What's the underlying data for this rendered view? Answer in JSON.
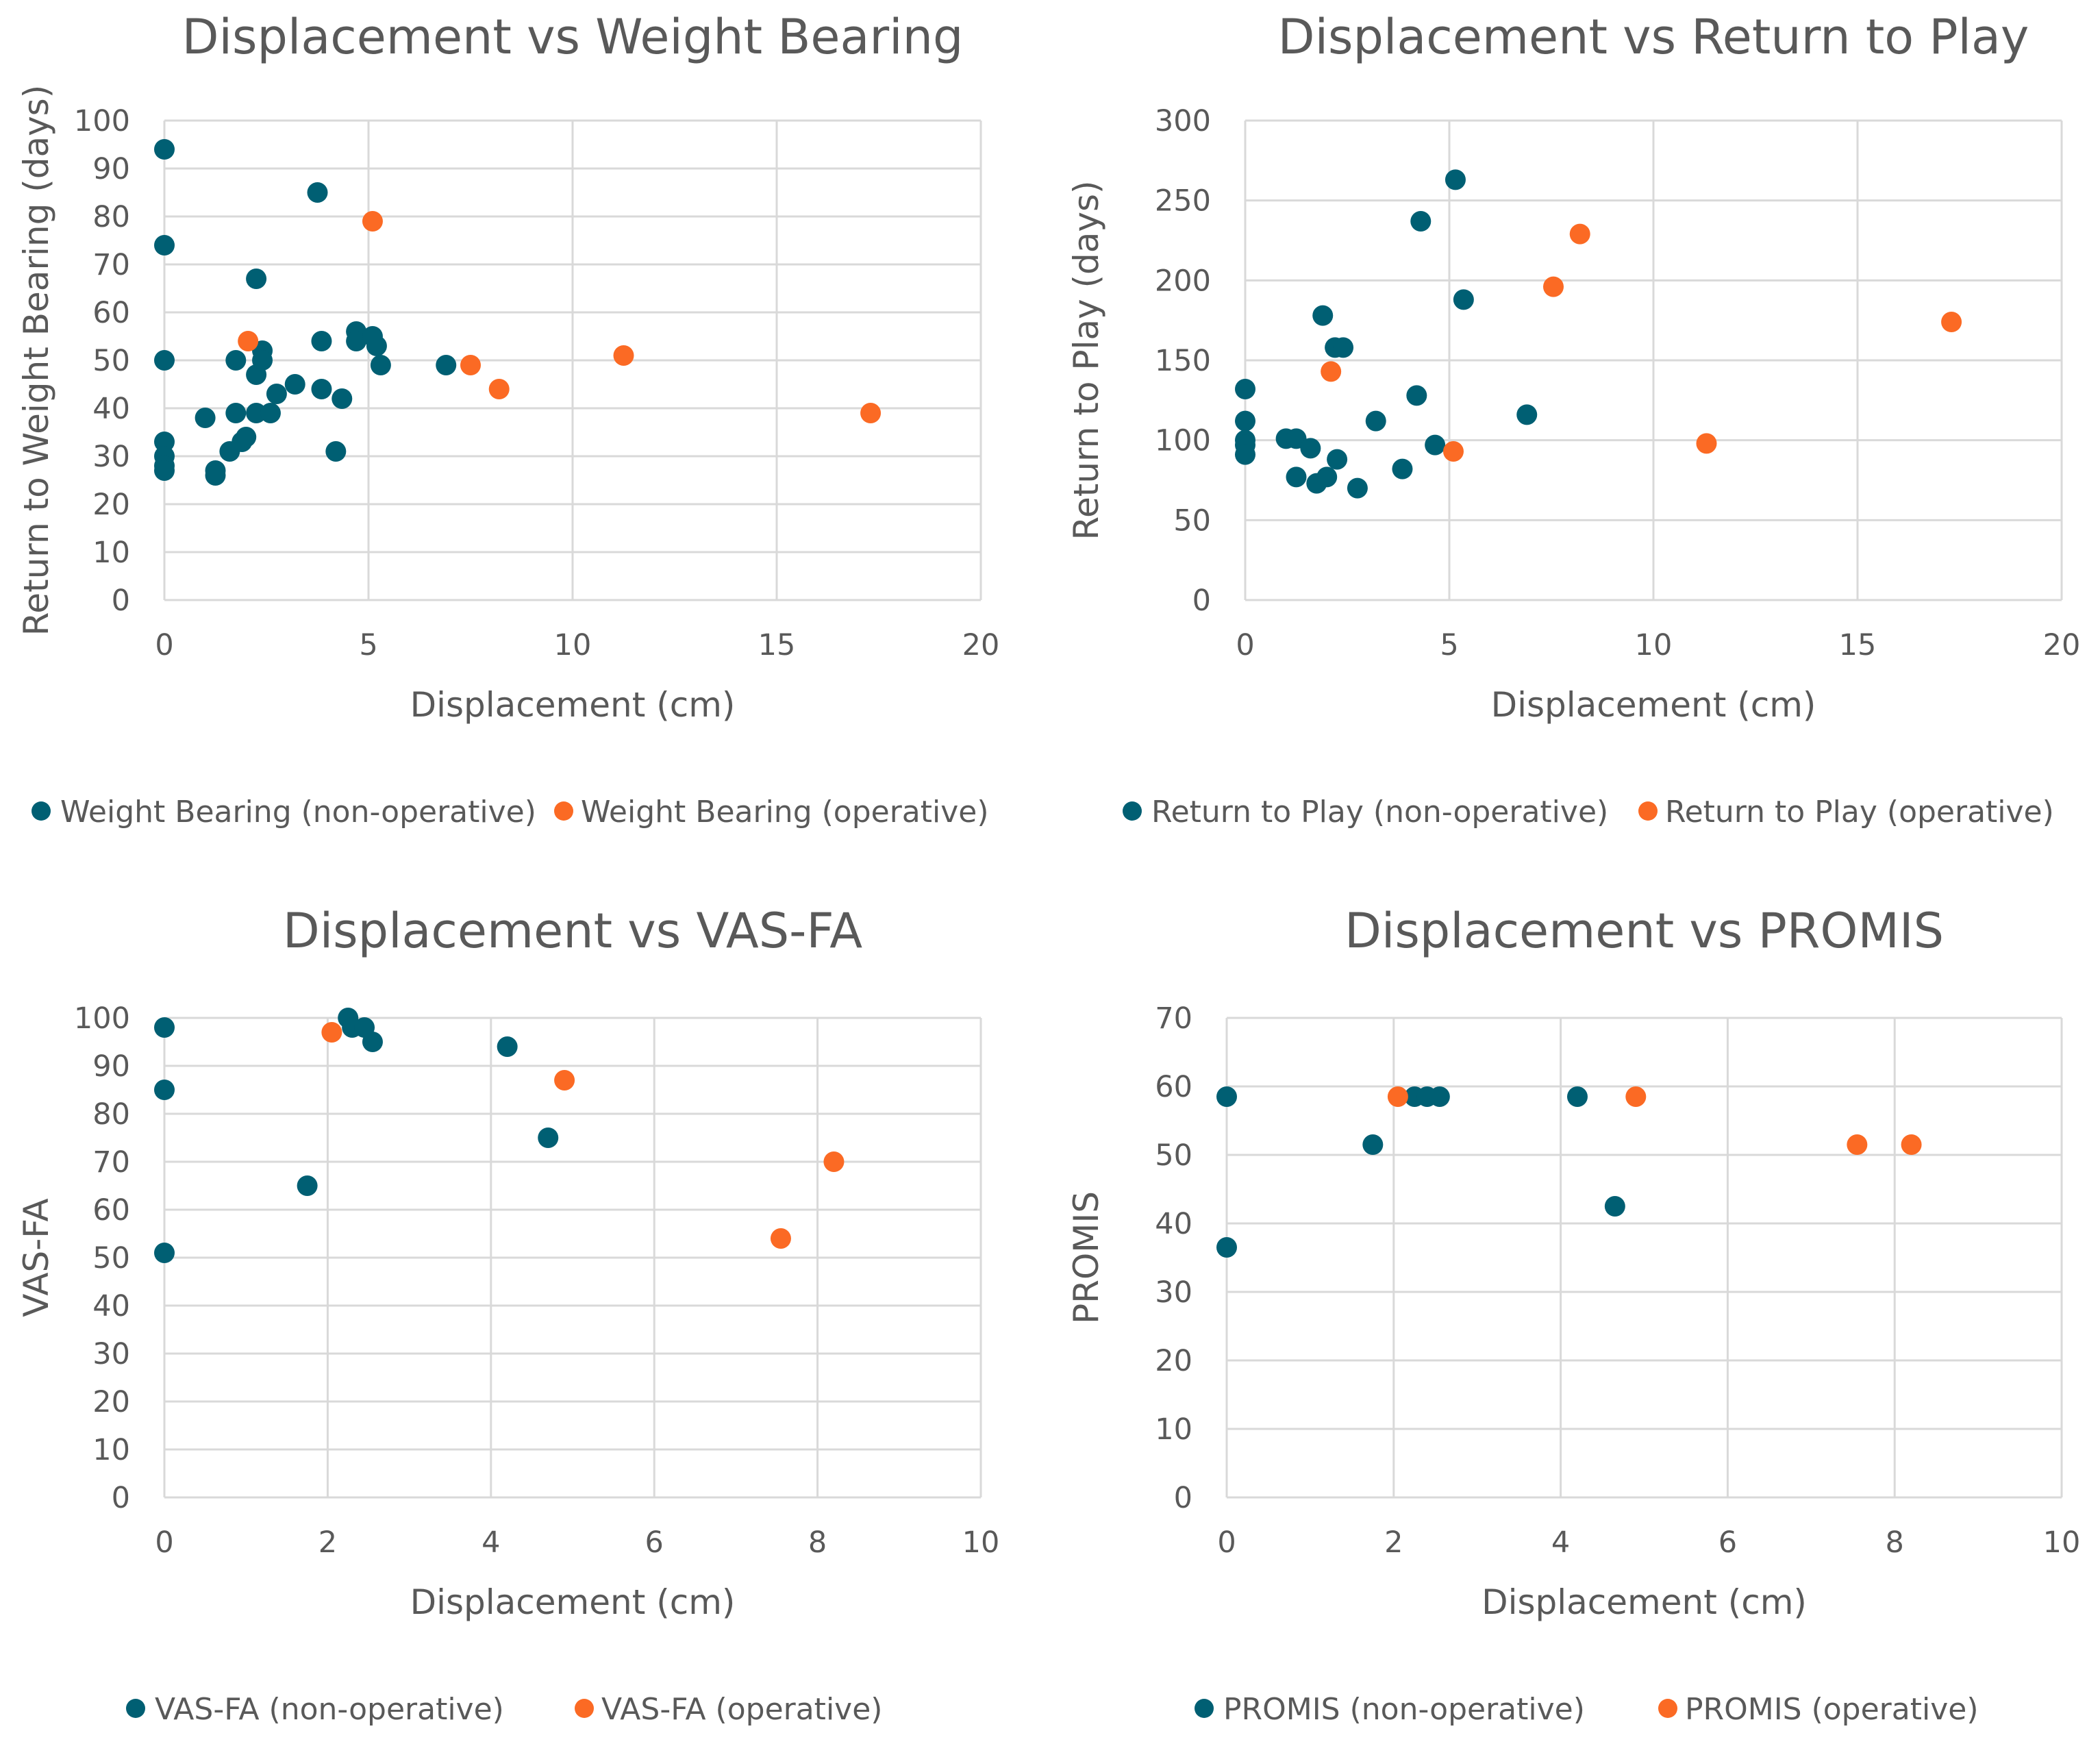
{
  "colors": {
    "non_operative": "#005f73",
    "operative": "#fb6a24",
    "grid": "#d9d9d9",
    "text": "#595959"
  },
  "chart_data": [
    {
      "type": "scatter",
      "title": "Displacement vs Weight Bearing",
      "xlabel": "Displacement (cm)",
      "ylabel": "Return to Weight Bearing (days)",
      "xlim": [
        0,
        20
      ],
      "ylim": [
        0,
        100
      ],
      "xticks": [
        0,
        5,
        10,
        15,
        20
      ],
      "yticks": [
        0,
        10,
        20,
        30,
        40,
        50,
        60,
        70,
        80,
        90,
        100
      ],
      "grid": "vertical and horizontal major gridlines",
      "legend_position": "bottom",
      "series": [
        {
          "name": "Weight Bearing (non-operative)",
          "color": "#005f73",
          "points": [
            [
              0,
              94
            ],
            [
              0,
              74
            ],
            [
              0,
              50
            ],
            [
              0,
              33
            ],
            [
              0,
              30
            ],
            [
              0,
              28
            ],
            [
              0,
              27
            ],
            [
              1,
              38
            ],
            [
              1.25,
              27
            ],
            [
              1.25,
              26
            ],
            [
              1.6,
              31
            ],
            [
              1.75,
              50
            ],
            [
              1.75,
              39
            ],
            [
              1.9,
              33
            ],
            [
              2,
              34
            ],
            [
              2.25,
              67
            ],
            [
              2.25,
              47
            ],
            [
              2.25,
              39
            ],
            [
              2.4,
              52
            ],
            [
              2.4,
              50
            ],
            [
              2.6,
              39
            ],
            [
              2.75,
              43
            ],
            [
              3.2,
              45
            ],
            [
              3.75,
              85
            ],
            [
              3.85,
              54
            ],
            [
              3.85,
              44
            ],
            [
              4.2,
              31
            ],
            [
              4.35,
              42
            ],
            [
              4.7,
              56
            ],
            [
              4.7,
              54
            ],
            [
              5.1,
              55
            ],
            [
              5.2,
              53
            ],
            [
              5.3,
              49
            ],
            [
              6.9,
              49
            ]
          ]
        },
        {
          "name": "Weight Bearing (operative)",
          "color": "#fb6a24",
          "points": [
            [
              2.05,
              54
            ],
            [
              5.1,
              79
            ],
            [
              7.5,
              49
            ],
            [
              8.2,
              44
            ],
            [
              11.25,
              51
            ],
            [
              17.3,
              39
            ]
          ]
        }
      ]
    },
    {
      "type": "scatter",
      "title": "Displacement vs Return to Play",
      "xlabel": "Displacement (cm)",
      "ylabel": "Return to Play (days)",
      "xlim": [
        0,
        20
      ],
      "ylim": [
        0,
        300
      ],
      "xticks": [
        0,
        5,
        10,
        15,
        20
      ],
      "yticks": [
        0,
        50,
        100,
        150,
        200,
        250,
        300
      ],
      "grid": "vertical and horizontal major gridlines",
      "legend_position": "bottom",
      "series": [
        {
          "name": "Return to Play (non-operative)",
          "color": "#005f73",
          "points": [
            [
              0,
              132
            ],
            [
              0,
              112
            ],
            [
              0,
              100
            ],
            [
              0,
              97
            ],
            [
              0,
              91
            ],
            [
              1,
              101
            ],
            [
              1.25,
              101
            ],
            [
              1.25,
              77
            ],
            [
              1.6,
              95
            ],
            [
              1.75,
              73
            ],
            [
              1.9,
              178
            ],
            [
              2,
              77
            ],
            [
              2.2,
              158
            ],
            [
              2.25,
              88
            ],
            [
              2.4,
              158
            ],
            [
              2.75,
              70
            ],
            [
              3.2,
              112
            ],
            [
              3.85,
              82
            ],
            [
              4.2,
              128
            ],
            [
              4.3,
              237
            ],
            [
              4.65,
              97
            ],
            [
              5.15,
              263
            ],
            [
              5.35,
              188
            ],
            [
              6.9,
              116
            ]
          ]
        },
        {
          "name": "Return to Play (operative)",
          "color": "#fb6a24",
          "points": [
            [
              2.1,
              143
            ],
            [
              5.1,
              93
            ],
            [
              7.55,
              196
            ],
            [
              8.2,
              229
            ],
            [
              11.3,
              98
            ],
            [
              17.3,
              174
            ]
          ]
        }
      ]
    },
    {
      "type": "scatter",
      "title": "Displacement vs VAS-FA",
      "xlabel": "Displacement (cm)",
      "ylabel": "VAS-FA",
      "xlim": [
        0,
        10
      ],
      "ylim": [
        0,
        100
      ],
      "xticks": [
        0,
        2,
        4,
        6,
        8,
        10
      ],
      "yticks": [
        0,
        10,
        20,
        30,
        40,
        50,
        60,
        70,
        80,
        90,
        100
      ],
      "grid": "vertical and horizontal major gridlines",
      "legend_position": "bottom",
      "series": [
        {
          "name": "VAS-FA (non-operative)",
          "color": "#005f73",
          "points": [
            [
              0,
              98
            ],
            [
              0,
              85
            ],
            [
              0,
              51
            ],
            [
              1.75,
              65
            ],
            [
              2.25,
              100
            ],
            [
              2.3,
              98
            ],
            [
              2.45,
              98
            ],
            [
              2.55,
              95
            ],
            [
              4.2,
              94
            ],
            [
              4.7,
              75
            ]
          ]
        },
        {
          "name": "VAS-FA (operative)",
          "color": "#fb6a24",
          "points": [
            [
              2.05,
              97
            ],
            [
              4.9,
              87
            ],
            [
              7.55,
              54
            ],
            [
              8.2,
              70
            ]
          ]
        }
      ]
    },
    {
      "type": "scatter",
      "title": "Displacement vs PROMIS",
      "xlabel": "Displacement (cm)",
      "ylabel": "PROMIS",
      "xlim": [
        0,
        10
      ],
      "ylim": [
        0,
        70
      ],
      "xticks": [
        0,
        2,
        4,
        6,
        8,
        10
      ],
      "yticks": [
        0,
        10,
        20,
        30,
        40,
        50,
        60,
        70
      ],
      "grid": "vertical and horizontal major gridlines",
      "legend_position": "bottom",
      "series": [
        {
          "name": "PROMIS (non-operative)",
          "color": "#005f73",
          "points": [
            [
              0,
              58.5
            ],
            [
              0,
              36.5
            ],
            [
              1.75,
              51.5
            ],
            [
              2.25,
              58.5
            ],
            [
              2.4,
              58.5
            ],
            [
              2.55,
              58.5
            ],
            [
              4.2,
              58.5
            ],
            [
              4.65,
              42.5
            ]
          ]
        },
        {
          "name": "PROMIS (operative)",
          "color": "#fb6a24",
          "points": [
            [
              2.05,
              58.5
            ],
            [
              4.9,
              58.5
            ],
            [
              7.55,
              51.5
            ],
            [
              8.2,
              51.5
            ]
          ]
        }
      ]
    }
  ]
}
